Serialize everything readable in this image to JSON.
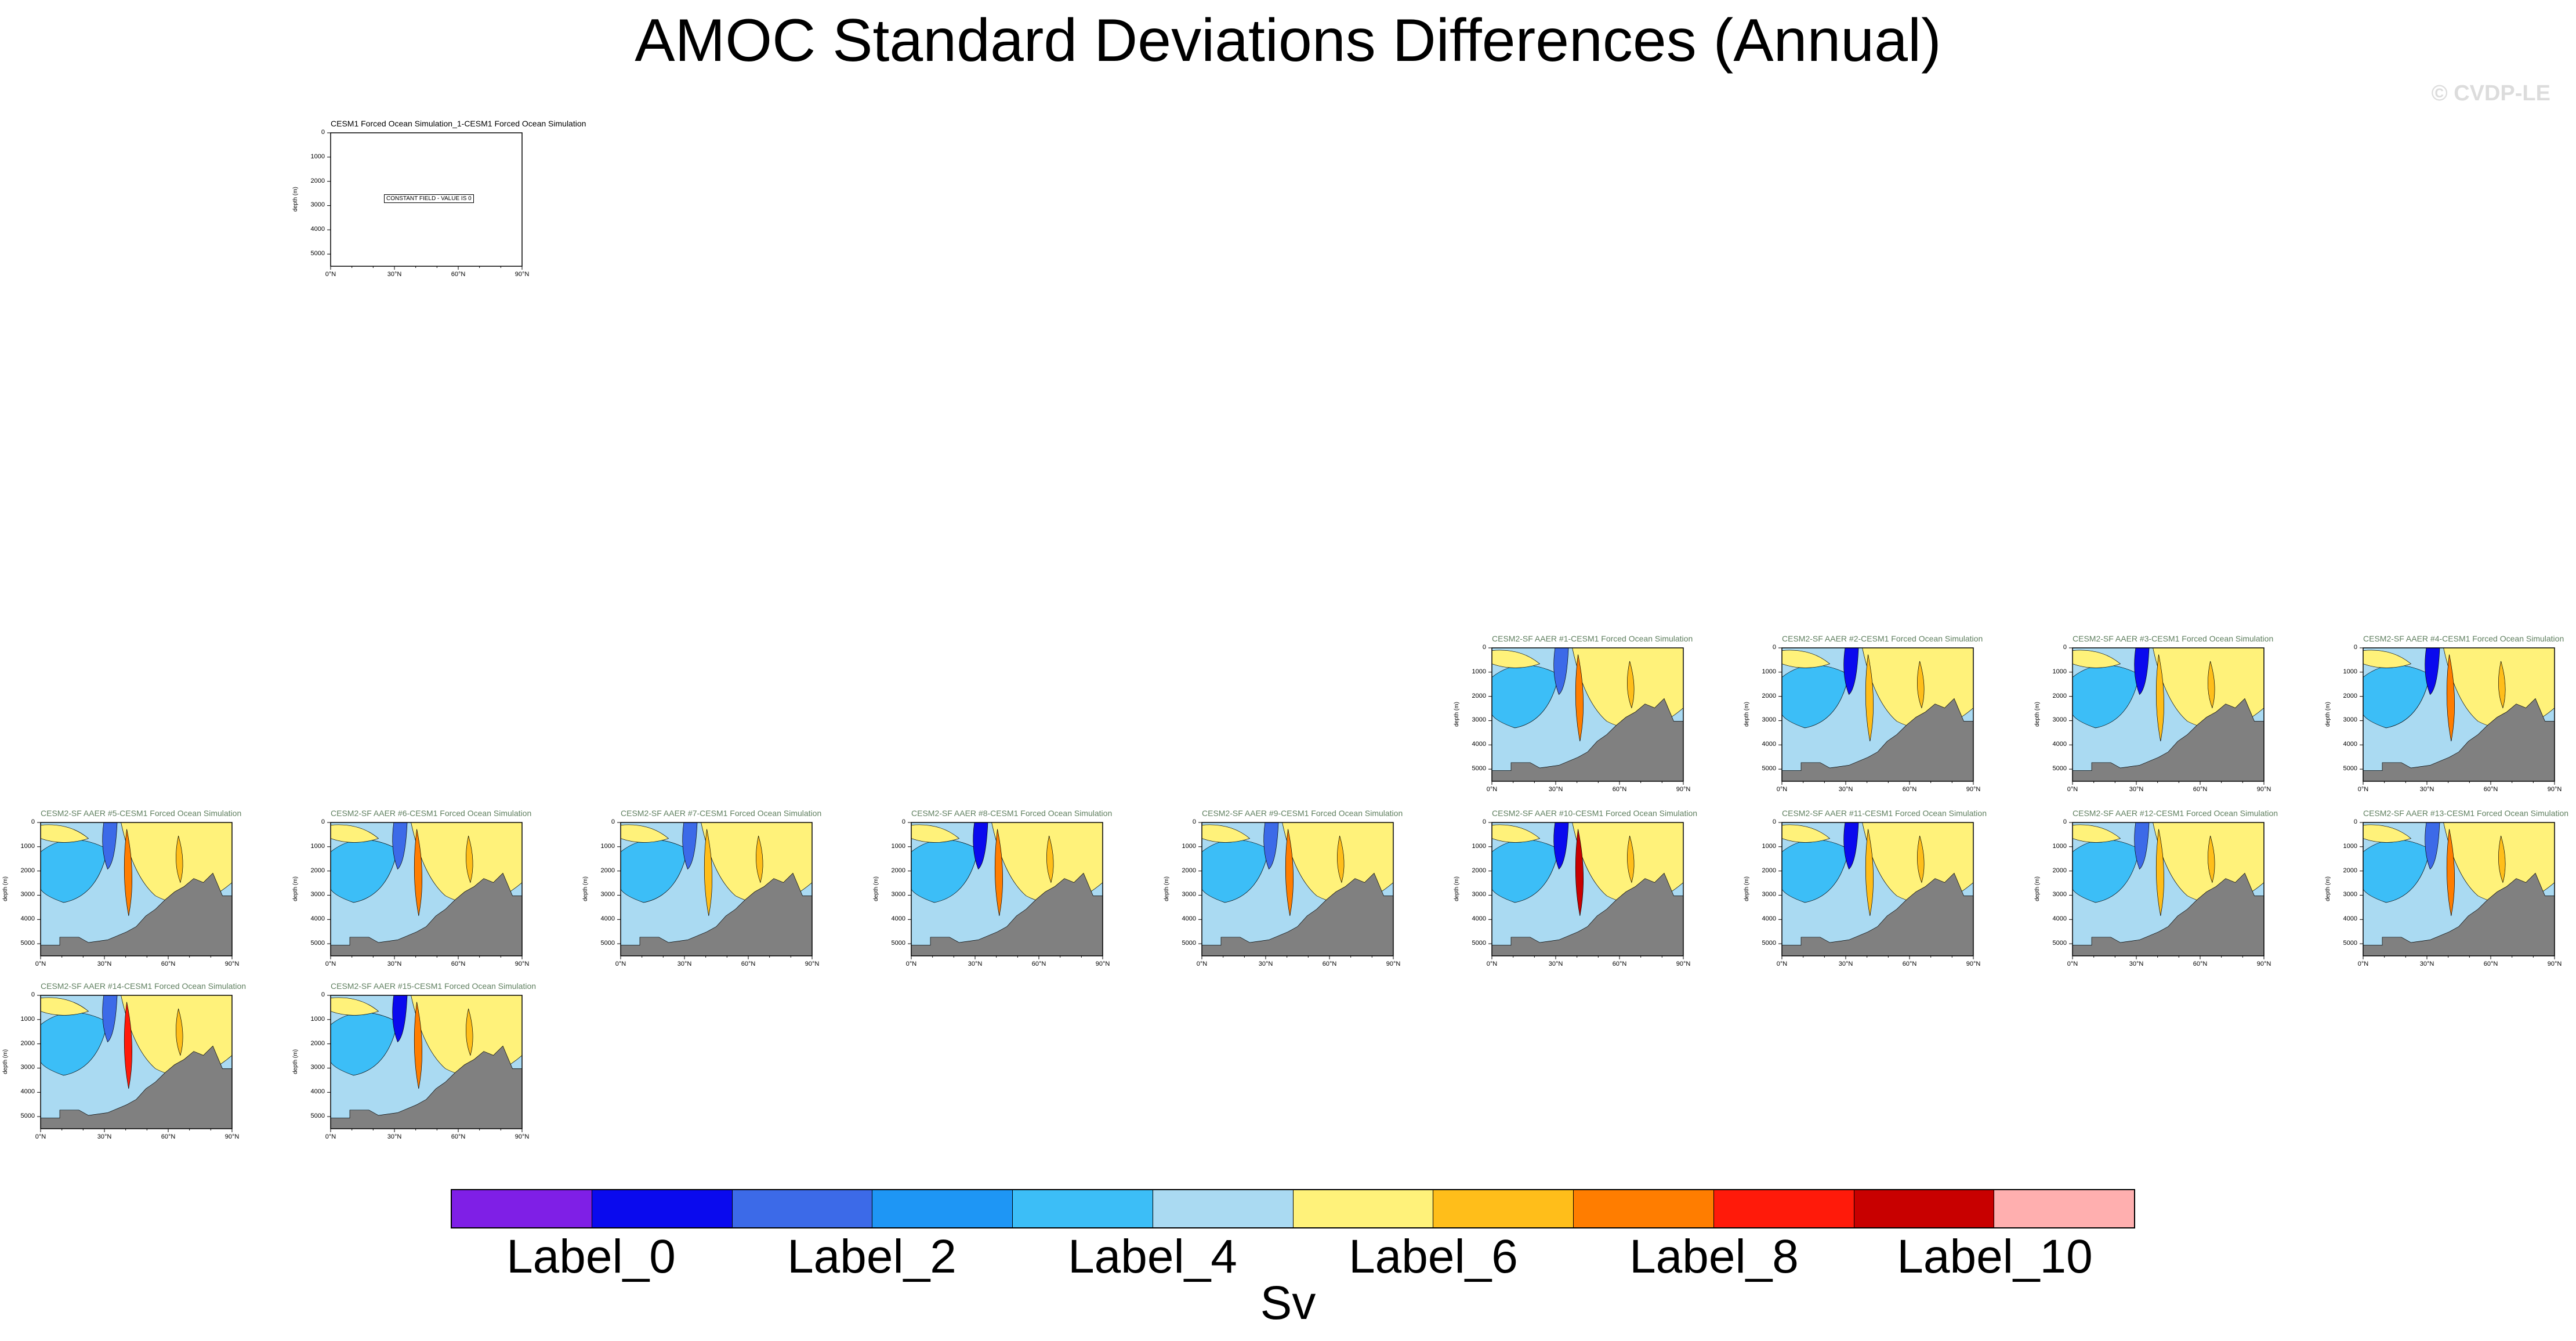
{
  "title": "AMOC Standard Deviations Differences (Annual)",
  "watermark": "© CVDP-LE",
  "chart_data": {
    "type": "heatmap",
    "title": "AMOC Standard Deviations Differences (Annual)",
    "xlabel": "",
    "ylabel": "depth (m)",
    "x_ticks": [
      "0°N",
      "30°N",
      "60°N",
      "90°N"
    ],
    "y_ticks": [
      "0",
      "1000",
      "2000",
      "3000",
      "4000",
      "5000"
    ],
    "xlim": [
      0,
      90
    ],
    "ylim": [
      5500,
      0
    ],
    "colorbar": {
      "units": "Sv",
      "labels": [
        "Label_0",
        "Label_2",
        "Label_4",
        "Label_6",
        "Label_8",
        "Label_10"
      ],
      "colors": [
        "#7f1fe6",
        "#0a0aee",
        "#3c6ae8",
        "#1e96f5",
        "#3cbef7",
        "#aadaf2",
        "#fff27a",
        "#ffbe1a",
        "#ff7d00",
        "#ff1a0a",
        "#c80000",
        "#ffafaf"
      ]
    },
    "panels": [
      {
        "title": "CESM1 Forced Ocean Simulation_1-CESM1 Forced Ocean Simulation",
        "constant": true,
        "constant_label": "CONSTANT FIELD - VALUE IS 0"
      },
      {
        "title": "CESM2-SF AAER #1-CESM1 Forced Ocean Simulation",
        "peak": 0,
        "warm": 1
      },
      {
        "title": "CESM2-SF AAER #2-CESM1 Forced Ocean Simulation",
        "peak": 1,
        "warm": 0
      },
      {
        "title": "CESM2-SF AAER #3-CESM1 Forced Ocean Simulation",
        "peak": 1,
        "warm": 0
      },
      {
        "title": "CESM2-SF AAER #4-CESM1 Forced Ocean Simulation",
        "peak": 3,
        "warm": 1
      },
      {
        "title": "CESM2-SF AAER #5-CESM1 Forced Ocean Simulation",
        "peak": 0,
        "warm": 1
      },
      {
        "title": "CESM2-SF AAER #6-CESM1 Forced Ocean Simulation",
        "peak": 2,
        "warm": 1
      },
      {
        "title": "CESM2-SF AAER #7-CESM1 Forced Ocean Simulation",
        "peak": 2,
        "warm": 0
      },
      {
        "title": "CESM2-SF AAER #8-CESM1 Forced Ocean Simulation",
        "peak": 3,
        "warm": 1
      },
      {
        "title": "CESM2-SF AAER #9-CESM1 Forced Ocean Simulation",
        "peak": 4,
        "warm": 1
      },
      {
        "title": "CESM2-SF AAER #10-CESM1 Forced Ocean Simulation",
        "peak": 5,
        "warm": 3
      },
      {
        "title": "CESM2-SF AAER #11-CESM1 Forced Ocean Simulation",
        "peak": 1,
        "warm": 0
      },
      {
        "title": "CESM2-SF AAER #12-CESM1 Forced Ocean Simulation",
        "peak": 0,
        "warm": 0
      },
      {
        "title": "CESM2-SF AAER #13-CESM1 Forced Ocean Simulation",
        "peak": 2,
        "warm": 1
      },
      {
        "title": "CESM2-SF AAER #14-CESM1 Forced Ocean Simulation",
        "peak": 0,
        "warm": 2
      },
      {
        "title": "CESM2-SF AAER #15-CESM1 Forced Ocean Simulation",
        "peak": 3,
        "warm": 1
      }
    ]
  }
}
